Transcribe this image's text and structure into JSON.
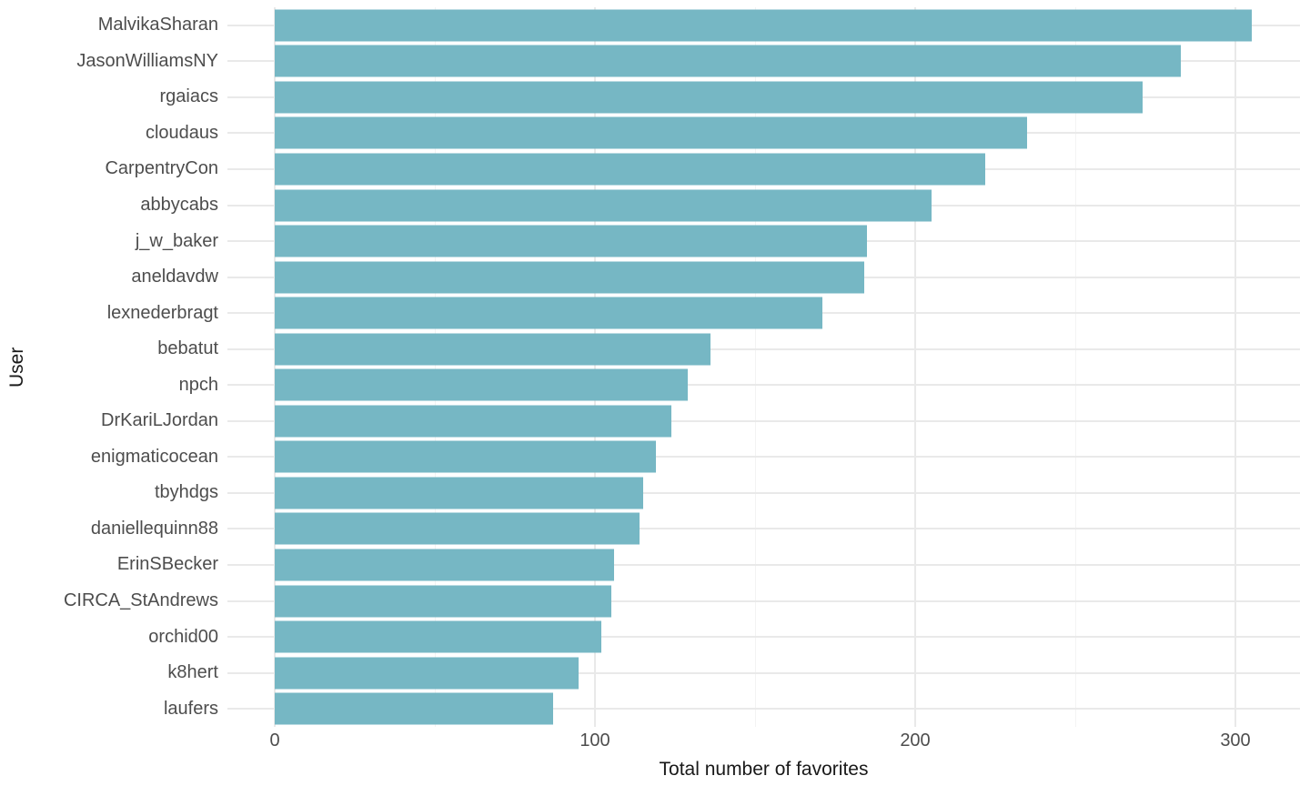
{
  "chart_data": {
    "type": "bar",
    "orientation": "horizontal",
    "title": "",
    "xlabel": "Total number of favorites",
    "ylabel": "User",
    "categories": [
      "MalvikaSharan",
      "JasonWilliamsNY",
      "rgaiacs",
      "cloudaus",
      "CarpentryCon",
      "abbycabs",
      "j_w_baker",
      "aneldavdw",
      "lexnederbragt",
      "bebatut",
      "npch",
      "DrKariLJordan",
      "enigmaticocean",
      "tbyhdgs",
      "daniellequinn88",
      "ErinSBecker",
      "CIRCA_StAndrews",
      "orchid00",
      "k8hert",
      "laufers"
    ],
    "values": [
      305,
      283,
      271,
      235,
      222,
      205,
      185,
      184,
      171,
      136,
      129,
      124,
      119,
      115,
      114,
      106,
      105,
      102,
      95,
      87
    ],
    "xlim": [
      0,
      320
    ],
    "x_ticks": [
      0,
      100,
      200,
      300
    ],
    "x_minor_ticks": [
      50,
      150,
      250
    ],
    "grid": true,
    "legend": false,
    "bar_color": "#76b7c4",
    "background_color": "#ffffff",
    "major_gridline_color": "#e9e9e9",
    "minor_gridline_color": "#f3f3f3",
    "tick_label_color": "#4d4d4d",
    "axis_title_color": "#191919"
  }
}
